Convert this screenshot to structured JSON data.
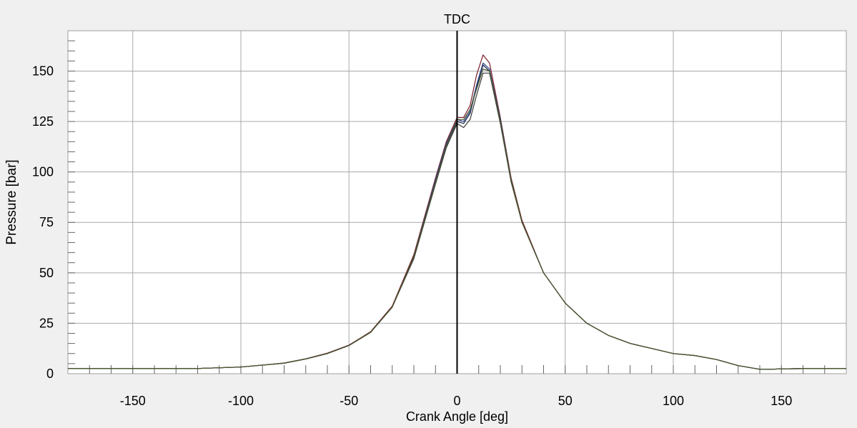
{
  "chart_data": {
    "type": "line",
    "title": "",
    "xlabel": "Crank Angle [deg]",
    "ylabel": "Pressure [bar]",
    "xlim": [
      -180,
      180
    ],
    "ylim": [
      0,
      170
    ],
    "x_ticks": [
      -150,
      -100,
      -50,
      0,
      50,
      100,
      150
    ],
    "y_ticks": [
      0,
      25,
      50,
      75,
      100,
      125,
      150
    ],
    "grid": true,
    "legend": "none",
    "annotations": [
      {
        "text": "TDC",
        "x": 0
      }
    ],
    "colors": {
      "background": "#f0f0f0",
      "plot_area": "#ffffff",
      "grid": "#a8a8a8",
      "tdc_line": "#000000"
    },
    "series": [
      {
        "color": "#1e2a4a",
        "x": [
          -180,
          -150,
          -120,
          -100,
          -80,
          -70,
          -60,
          -50,
          -40,
          -30,
          -20,
          -10,
          -5,
          0,
          3,
          6,
          9,
          12,
          15,
          20,
          25,
          30,
          40,
          50,
          60,
          70,
          80,
          90,
          100,
          110,
          120,
          130,
          140,
          145,
          150,
          160,
          180
        ],
        "y": [
          2.5,
          2.5,
          2.6,
          3.3,
          5.2,
          7.3,
          10,
          14,
          20.5,
          33,
          58,
          95,
          113,
          125,
          124,
          129,
          142,
          153,
          150,
          125,
          96,
          75,
          50,
          35,
          25,
          19,
          15,
          12.5,
          10,
          9,
          7,
          4,
          2.2,
          2.2,
          2.4,
          2.5,
          2.5
        ]
      },
      {
        "color": "#7a1c2a",
        "x": [
          -180,
          -150,
          -120,
          -100,
          -80,
          -70,
          -60,
          -50,
          -40,
          -30,
          -20,
          -10,
          -5,
          0,
          3,
          6,
          9,
          12,
          15,
          20,
          25,
          30,
          40,
          50,
          60,
          70,
          80,
          90,
          100,
          110,
          120,
          130,
          140,
          145,
          150,
          160,
          180
        ],
        "y": [
          2.5,
          2.5,
          2.6,
          3.3,
          5.3,
          7.4,
          10.2,
          14.2,
          20.8,
          33.5,
          59,
          97,
          115,
          127,
          127,
          133,
          148,
          158,
          154,
          127,
          97,
          76,
          50,
          35,
          25,
          19,
          15,
          12.5,
          10,
          9,
          7,
          4,
          2.2,
          2.2,
          2.4,
          2.5,
          2.5
        ]
      },
      {
        "color": "#2a3f8a",
        "x": [
          -180,
          -150,
          -120,
          -100,
          -80,
          -70,
          -60,
          -50,
          -40,
          -30,
          -20,
          -10,
          -5,
          0,
          3,
          6,
          9,
          12,
          15,
          20,
          25,
          30,
          40,
          50,
          60,
          70,
          80,
          90,
          100,
          110,
          120,
          130,
          140,
          145,
          150,
          160,
          180
        ],
        "y": [
          2.5,
          2.5,
          2.6,
          3.3,
          5.2,
          7.3,
          10,
          14,
          20.5,
          33,
          58,
          96,
          114,
          126,
          125,
          130,
          143,
          154,
          151,
          126,
          96,
          75,
          50,
          35,
          25,
          19,
          15,
          12.5,
          10,
          9,
          7,
          4,
          2.2,
          2.2,
          2.4,
          2.5,
          2.5
        ]
      },
      {
        "color": "#3a3a3a",
        "x": [
          -180,
          -150,
          -120,
          -100,
          -80,
          -70,
          -60,
          -50,
          -40,
          -30,
          -20,
          -10,
          -5,
          0,
          3,
          6,
          9,
          12,
          15,
          20,
          25,
          30,
          40,
          50,
          60,
          70,
          80,
          90,
          100,
          110,
          120,
          130,
          140,
          145,
          150,
          160,
          180
        ],
        "y": [
          2.5,
          2.5,
          2.6,
          3.3,
          5.2,
          7.3,
          10,
          14,
          20.5,
          33,
          57,
          94,
          112,
          124,
          122,
          126,
          138,
          149,
          149,
          124,
          95,
          75,
          50,
          35,
          25,
          19,
          15,
          12.5,
          10,
          9,
          7,
          4,
          2.2,
          2.2,
          2.4,
          2.5,
          2.5
        ]
      },
      {
        "color": "#4a5a2a",
        "x": [
          -180,
          -150,
          -120,
          -100,
          -80,
          -70,
          -60,
          -50,
          -40,
          -30,
          -20,
          -10,
          -5,
          0,
          3,
          6,
          9,
          12,
          15,
          20,
          25,
          30,
          40,
          50,
          60,
          70,
          80,
          90,
          100,
          110,
          120,
          130,
          140,
          145,
          150,
          160,
          180
        ],
        "y": [
          2.5,
          2.5,
          2.6,
          3.3,
          5.2,
          7.3,
          10,
          14,
          20.5,
          33,
          58,
          95,
          113,
          126,
          126,
          131,
          141,
          151,
          150,
          125,
          96,
          75,
          50,
          35,
          25,
          19,
          15,
          12.5,
          10,
          9,
          7,
          4,
          2.2,
          2.2,
          2.4,
          2.5,
          2.5
        ]
      }
    ]
  }
}
